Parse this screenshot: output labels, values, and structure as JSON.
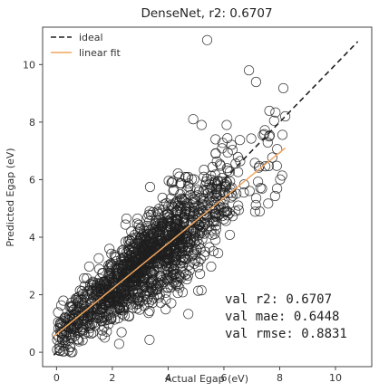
{
  "chart_data": {
    "type": "scatter",
    "title": "DenseNet, r2: 0.6707",
    "xlabel": "Actual Egap (eV)",
    "ylabel": "Predicted Egap (eV)",
    "xlim": [
      -0.5,
      11.3
    ],
    "ylim": [
      -0.5,
      11.3
    ],
    "xticks": [
      0,
      2,
      4,
      6,
      8,
      10
    ],
    "yticks": [
      0,
      2,
      4,
      6,
      8,
      10
    ],
    "grid": false,
    "legend_position": "top-left",
    "legend": [
      {
        "label": "ideal",
        "style": "dashed",
        "color": "#222222"
      },
      {
        "label": "linear fit",
        "style": "solid",
        "color": "#f2a65e"
      }
    ],
    "ideal_line": {
      "x": [
        -0.1,
        10.8
      ],
      "y": [
        -0.1,
        10.8
      ]
    },
    "fit_line": {
      "x": [
        -0.1,
        8.2
      ],
      "y": [
        0.55,
        7.1
      ]
    },
    "metrics": [
      "val r2: 0.6707",
      "val mae: 0.6448",
      "val rmse: 0.8831"
    ],
    "points": {
      "n": 1500,
      "x_range": [
        0,
        8.2
      ],
      "slope": 0.79,
      "intercept": 0.62,
      "noise_sd": 0.78,
      "seed": 7,
      "outliers": [
        {
          "x": 5.4,
          "y": 10.85
        },
        {
          "x": 6.9,
          "y": 9.8
        },
        {
          "x": 4.9,
          "y": 8.1
        },
        {
          "x": 5.2,
          "y": 7.9
        },
        {
          "x": 6.1,
          "y": 7.9
        },
        {
          "x": 7.8,
          "y": 8.05
        },
        {
          "x": 8.2,
          "y": 8.2
        },
        {
          "x": 7.4,
          "y": 7.55
        },
        {
          "x": 5.7,
          "y": 7.4
        }
      ]
    },
    "colors": {
      "marker_edge": "#1f1f1f",
      "marker_fill": "none",
      "ideal": "#222222",
      "fit": "#f2a65e",
      "axis": "#444444"
    }
  }
}
